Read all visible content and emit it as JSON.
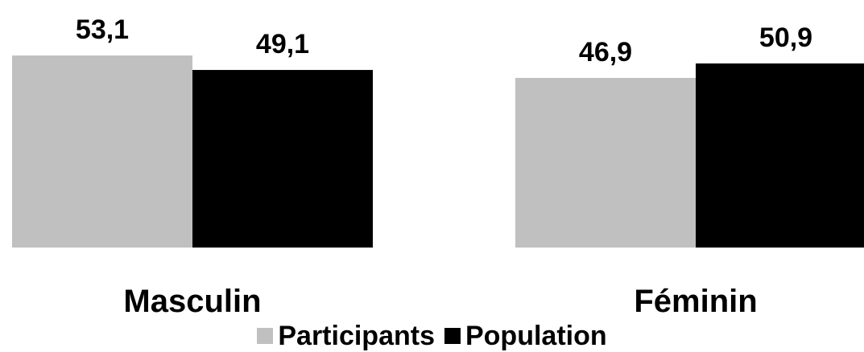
{
  "chart_data": {
    "type": "bar",
    "categories": [
      "Masculin",
      "Féminin"
    ],
    "series": [
      {
        "name": "Participants",
        "color": "#c0c0c0",
        "values": [
          53.1,
          46.9
        ],
        "labels": [
          "53,1",
          "46,9"
        ]
      },
      {
        "name": "Population",
        "color": "#000000",
        "values": [
          49.1,
          50.9
        ],
        "labels": [
          "49,1",
          "50,9"
        ]
      }
    ],
    "title": "",
    "xlabel": "",
    "ylabel": "",
    "grid": false,
    "legend_position": "bottom"
  }
}
